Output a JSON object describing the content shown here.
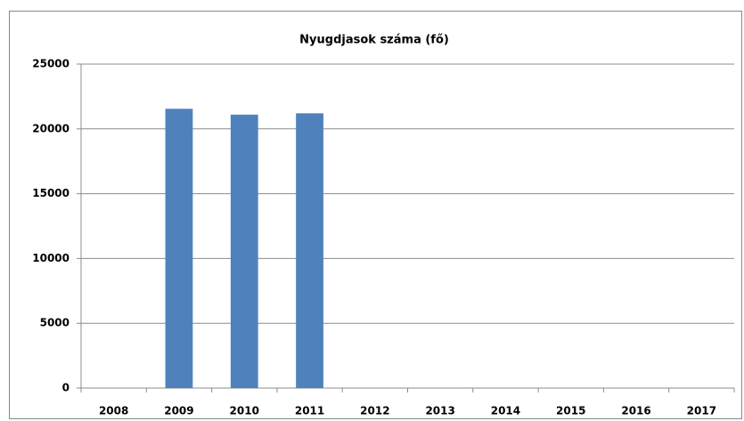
{
  "chart_data": {
    "type": "bar",
    "title": "Nyugdjasok száma (fő)",
    "categories": [
      "2008",
      "2009",
      "2010",
      "2011",
      "2012",
      "2013",
      "2014",
      "2015",
      "2016",
      "2017"
    ],
    "values": [
      null,
      21550,
      21100,
      21200,
      null,
      null,
      null,
      null,
      null,
      null
    ],
    "color": "#4f81bd",
    "ylim": [
      0,
      25000
    ],
    "yticks": [
      0,
      5000,
      10000,
      15000,
      20000,
      25000
    ],
    "grid": true
  }
}
